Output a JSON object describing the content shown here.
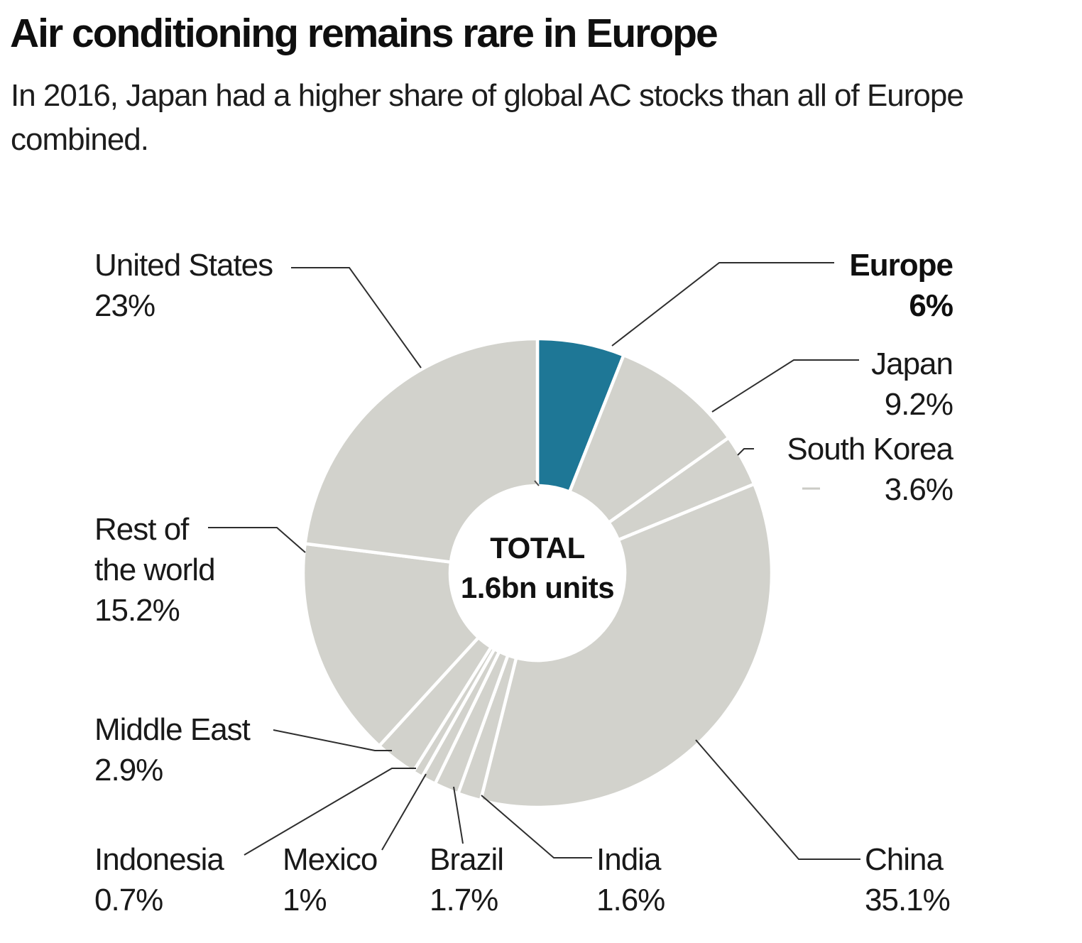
{
  "page": {
    "title": "Air conditioning remains rare in Europe",
    "subtitle_line1": "In 2016, Japan had a higher share of global AC stocks than all of Europe",
    "subtitle_line2": "combined."
  },
  "chart_data": {
    "type": "pie",
    "variant": "donut",
    "title": "Air conditioning remains rare in Europe",
    "center_label": "TOTAL",
    "center_value": "1.6bn units",
    "start_angle_deg": 0,
    "direction": "clockwise",
    "default_color": "#d2d2cc",
    "highlight_color": "#1e7796",
    "gap_color": "#ffffff",
    "legend_position": "around",
    "segments": [
      {
        "name": "Europe",
        "value": 6,
        "display": "6%",
        "highlight": true
      },
      {
        "name": "Japan",
        "value": 9.2,
        "display": "9.2%"
      },
      {
        "name": "South Korea",
        "value": 3.6,
        "display": "3.6%"
      },
      {
        "name": "China",
        "value": 35.1,
        "display": "35.1%"
      },
      {
        "name": "India",
        "value": 1.6,
        "display": "1.6%"
      },
      {
        "name": "Brazil",
        "value": 1.7,
        "display": "1.7%"
      },
      {
        "name": "Mexico",
        "value": 1,
        "display": "1%"
      },
      {
        "name": "Indonesia",
        "value": 0.7,
        "display": "0.7%"
      },
      {
        "name": "Middle East",
        "value": 2.9,
        "display": "2.9%"
      },
      {
        "name": "Rest of the world",
        "value": 15.2,
        "display": "15.2%",
        "name_lines": [
          "Rest of",
          "the world"
        ]
      },
      {
        "name": "United States",
        "value": 23,
        "display": "23%"
      }
    ]
  }
}
